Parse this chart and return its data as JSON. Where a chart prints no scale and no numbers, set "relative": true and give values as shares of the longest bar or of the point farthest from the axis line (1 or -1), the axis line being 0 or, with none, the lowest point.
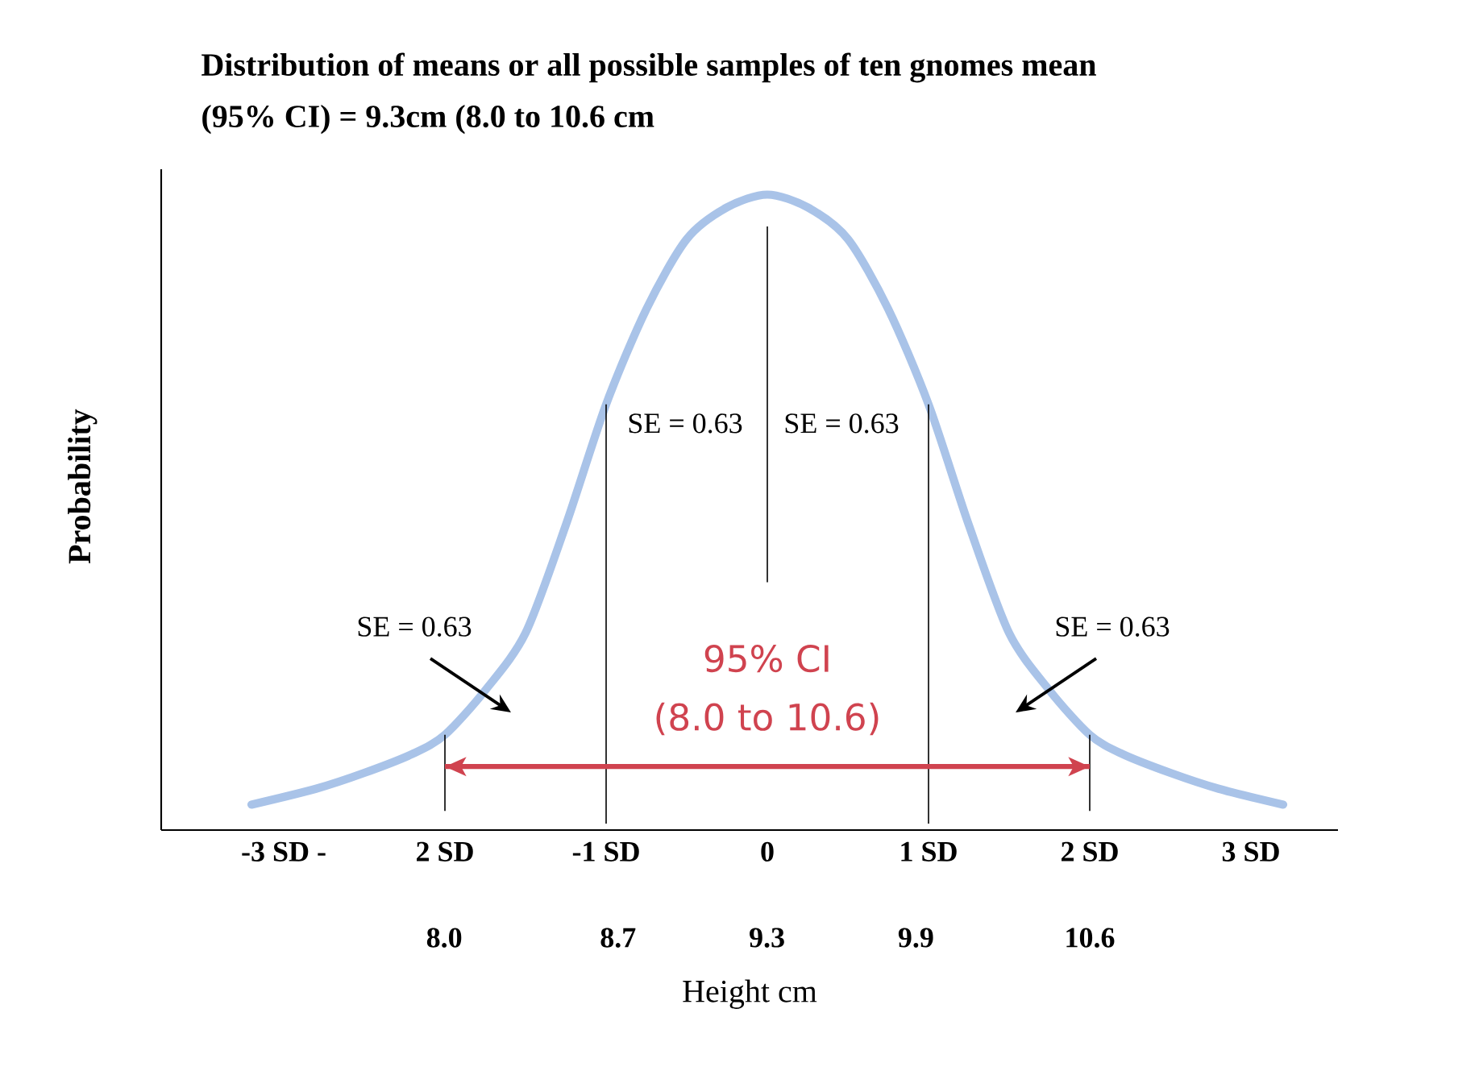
{
  "chart_data": {
    "type": "line",
    "relative": true,
    "title": "Distribution of means or all possible samples of ten gnomes mean",
    "subtitle": "(95% CI) = 9.3cm (8.0 to 10.6 cm",
    "xlabel": "Height cm",
    "ylabel": "Probability",
    "xlim": [
      -3.76,
      3.54
    ],
    "xticks": [
      {
        "value": -3,
        "label": "-3 SD -"
      },
      {
        "value": -2,
        "label": "2 SD"
      },
      {
        "value": -1,
        "label": "-1 SD"
      },
      0,
      {
        "value": 1,
        "label": "1 SD"
      },
      {
        "value": 2,
        "label": "2 SD"
      },
      {
        "value": 3,
        "label": "3 SD"
      }
    ],
    "x2lim": [
      6.86,
      11.6
    ],
    "x2ticks": [
      {
        "value": 8,
        "label": "8.0"
      },
      8.7,
      9.3,
      9.9,
      10.6
    ],
    "series": [
      {
        "color": "#a9c3e8",
        "x": [
          -3.2,
          -2.8,
          -2.5,
          -2.2,
          -2,
          -1.75,
          -1.5,
          -1.25,
          -1,
          -0.75,
          -0.5,
          -0.25,
          0,
          0.25,
          0.5,
          0.75,
          1,
          1.25,
          1.5,
          1.75,
          2,
          2.2,
          2.5,
          2.8,
          3.2
        ],
        "values": [
          0.04,
          0.065,
          0.09,
          0.12,
          0.15,
          0.22,
          0.31,
          0.48,
          0.67,
          0.82,
          0.93,
          0.98,
          1,
          0.98,
          0.93,
          0.82,
          0.67,
          0.48,
          0.31,
          0.22,
          0.15,
          0.12,
          0.09,
          0.065,
          0.04
        ]
      },
      {
        "color": "#000000",
        "x": [
          -2,
          -2
        ],
        "values": [
          0.03,
          0.15
        ]
      },
      {
        "color": "#000000",
        "x": [
          -1,
          -1
        ],
        "values": [
          0.01,
          0.67
        ]
      },
      {
        "color": "#000000",
        "x": [
          0,
          0
        ],
        "values": [
          0.39,
          0.95
        ]
      },
      {
        "color": "#000000",
        "x": [
          1,
          1
        ],
        "values": [
          0.01,
          0.67
        ]
      },
      {
        "color": "#000000",
        "x": [
          2,
          2
        ],
        "values": [
          0.03,
          0.15
        ]
      },
      {
        "color": "#d0434f",
        "x": [
          -2,
          2
        ],
        "values": [
          0.1,
          0.1
        ]
      }
    ],
    "annotations": [
      "SE = 0.63",
      "SE = 0.63",
      "SE = 0.63",
      "SE = 0.63",
      "95% CI",
      "(8.0 to 10.6)"
    ]
  }
}
